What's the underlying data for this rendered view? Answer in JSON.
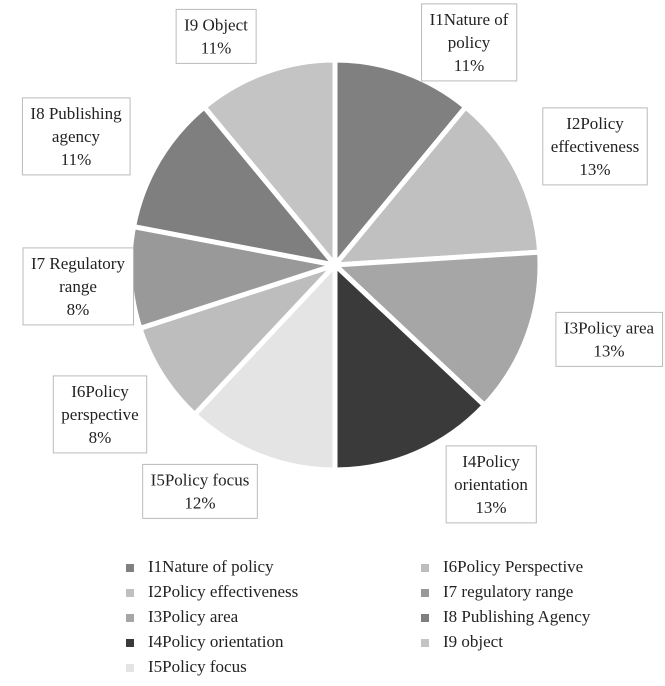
{
  "chart_data": {
    "type": "pie",
    "categories": [
      "I1Nature of policy",
      "I2Policy effectiveness",
      "I3Policy area",
      "I4Policy orientation",
      "I5Policy focus",
      "I6Policy Perspective",
      "I7 regulatory range",
      "I8 Publishing Agency",
      "I9 object"
    ],
    "slice_labels": [
      [
        "I1Nature of",
        "policy"
      ],
      [
        "I2Policy",
        "effectiveness"
      ],
      [
        "I3Policy area"
      ],
      [
        "I4Policy",
        "orientation"
      ],
      [
        "I5Policy focus"
      ],
      [
        "I6Policy",
        "perspective"
      ],
      [
        "I7 Regulatory",
        "range"
      ],
      [
        "I8 Publishing",
        "agency"
      ],
      [
        "I9 Object"
      ]
    ],
    "values": [
      11,
      13,
      13,
      13,
      12,
      8,
      8,
      11,
      11
    ],
    "value_labels": [
      "11%",
      "13%",
      "13%",
      "13%",
      "12%",
      "8%",
      "8%",
      "11%",
      "11%"
    ],
    "colors": [
      "#808080",
      "#c0c0c0",
      "#a6a6a6",
      "#3a3a3a",
      "#e4e4e4",
      "#bdbdbd",
      "#999999",
      "#7f7f7f",
      "#c4c4c4"
    ],
    "legend": "bottom"
  }
}
